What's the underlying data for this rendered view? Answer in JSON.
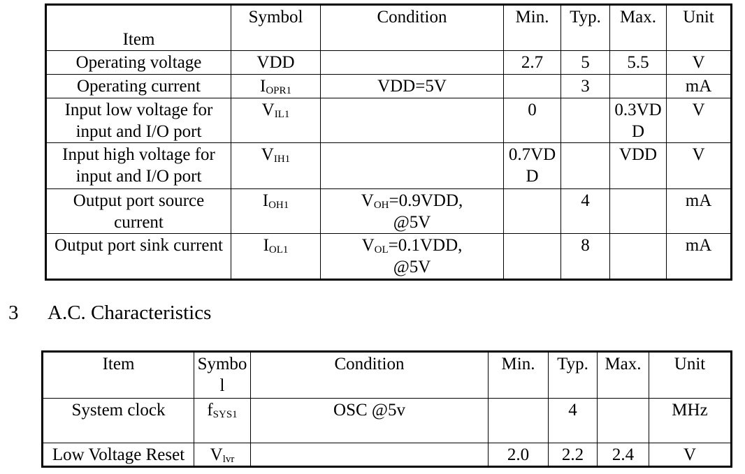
{
  "dc_table": {
    "header": [
      "Item",
      "Symbol",
      "Condition",
      "Min.",
      "Typ.",
      "Max.",
      "Unit"
    ],
    "rows": [
      [
        "Operating voltage",
        "VDD",
        null,
        2.7,
        5,
        5.5,
        "V"
      ],
      [
        "Operating current",
        {
          "main": "I",
          "sub": "OPR1"
        },
        "VDD=5V",
        null,
        3,
        null,
        "mA"
      ],
      [
        "Input low voltage for input and I/O port",
        {
          "main": "V",
          "sub": "IL1"
        },
        null,
        0,
        null,
        "0.3VDD",
        "V"
      ],
      [
        "Input high voltage for input and I/O port",
        {
          "main": "V",
          "sub": "IH1"
        },
        null,
        "0.7VDD",
        null,
        "VDD",
        "V"
      ],
      [
        "Output port source current",
        {
          "main": "I",
          "sub": "OH1"
        },
        {
          "main": "V",
          "sub": "OH",
          "rest": "=0.9VDD, @5V"
        },
        null,
        4,
        null,
        "mA"
      ],
      [
        "Output port sink current",
        {
          "main": "I",
          "sub": "OL1"
        },
        {
          "main": "V",
          "sub": "OL",
          "rest": "=0.1VDD, @5V"
        },
        null,
        8,
        null,
        "mA"
      ]
    ]
  },
  "section": {
    "number": "3",
    "title": "A.C. Characteristics"
  },
  "ac_table": {
    "header": [
      "Item",
      "Symbol",
      "Condition",
      "Min.",
      "Typ.",
      "Max.",
      "Unit"
    ],
    "rows": [
      [
        "System clock",
        {
          "main": "f",
          "sub": "SYS1"
        },
        "OSC @5v",
        null,
        4,
        null,
        "MHz"
      ],
      [
        "Low Voltage Reset",
        {
          "main": "V",
          "sub": "lvr"
        },
        null,
        "2.0",
        2.2,
        2.4,
        "V"
      ]
    ]
  }
}
